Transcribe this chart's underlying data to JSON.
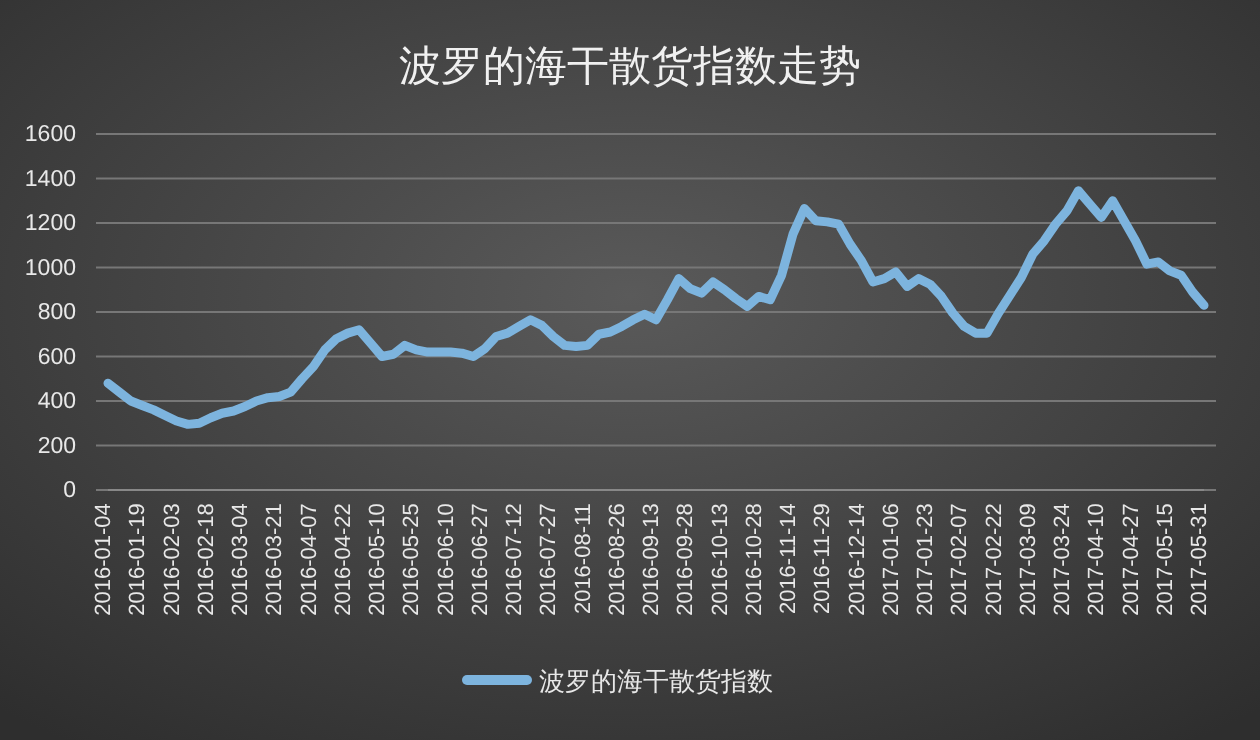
{
  "chart_data": {
    "type": "line",
    "title": "波罗的海干散货指数走势",
    "categories": [
      "2016-01-04",
      null,
      null,
      "2016-01-19",
      null,
      null,
      "2016-02-03",
      null,
      null,
      "2016-02-18",
      null,
      null,
      "2016-03-04",
      null,
      null,
      "2016-03-21",
      null,
      null,
      "2016-04-07",
      null,
      null,
      "2016-04-22",
      null,
      null,
      "2016-05-10",
      null,
      null,
      "2016-05-25",
      null,
      null,
      "2016-06-10",
      null,
      null,
      "2016-06-27",
      null,
      null,
      "2016-07-12",
      null,
      null,
      "2016-07-27",
      null,
      null,
      "2016-08-11",
      null,
      null,
      "2016-08-26",
      null,
      null,
      "2016-09-13",
      null,
      null,
      "2016-09-28",
      null,
      null,
      "2016-10-13",
      null,
      null,
      "2016-10-28",
      null,
      null,
      "2016-11-14",
      null,
      null,
      "2016-11-29",
      null,
      null,
      "2016-12-14",
      null,
      null,
      "2017-01-06",
      null,
      null,
      "2017-01-23",
      null,
      null,
      "2017-02-07",
      null,
      null,
      "2017-02-22",
      null,
      null,
      "2017-03-09",
      null,
      null,
      "2017-03-24",
      null,
      null,
      "2017-04-10",
      null,
      null,
      "2017-04-27",
      null,
      null,
      "2017-05-15",
      null,
      null,
      "2017-05-31"
    ],
    "series": [
      {
        "name": "波罗的海干散货指数",
        "color": "#7db4de",
        "values": [
          480,
          440,
          400,
          380,
          360,
          335,
          310,
          295,
          300,
          325,
          345,
          355,
          375,
          400,
          415,
          420,
          440,
          500,
          555,
          630,
          680,
          705,
          720,
          660,
          600,
          610,
          650,
          630,
          620,
          620,
          620,
          615,
          600,
          635,
          690,
          705,
          735,
          765,
          740,
          690,
          650,
          645,
          650,
          700,
          710,
          735,
          765,
          790,
          765,
          855,
          950,
          905,
          885,
          935,
          900,
          860,
          825,
          870,
          855,
          965,
          1150,
          1265,
          1210,
          1205,
          1195,
          1105,
          1030,
          935,
          950,
          980,
          915,
          950,
          925,
          870,
          795,
          735,
          705,
          705,
          795,
          875,
          955,
          1060,
          1120,
          1195,
          1255,
          1345,
          1285,
          1225,
          1300,
          1210,
          1120,
          1015,
          1025,
          985,
          965,
          890,
          830
        ]
      }
    ],
    "ylim": [
      0,
      1600
    ],
    "yticks": [
      0,
      200,
      400,
      600,
      800,
      1000,
      1200,
      1400,
      1600
    ],
    "grid": "y",
    "legend": "bottom",
    "marker": "none",
    "line_style": "solid"
  }
}
